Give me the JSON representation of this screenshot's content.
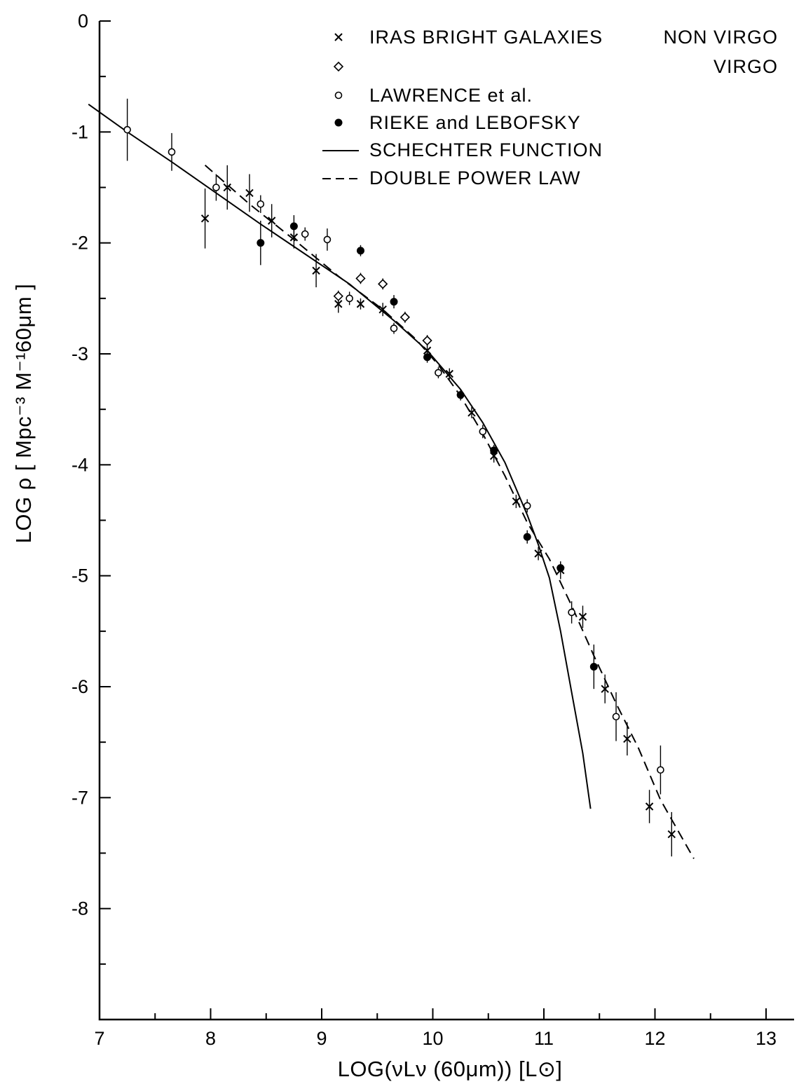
{
  "chart_data": {
    "type": "scatter",
    "xlabel": "LOG(νLν (60μm)) [L⊙]",
    "ylabel": "LOG ρ [ Mpc⁻³ M⁻¹60μm ]",
    "xlim": [
      7,
      13
    ],
    "ylim": [
      -9,
      0
    ],
    "xticks": [
      "7",
      "8",
      "9",
      "10",
      "11",
      "12",
      "13"
    ],
    "yticks": [
      "0",
      "-1",
      "-2",
      "-3",
      "-4",
      "-5",
      "-6",
      "-7",
      "-8"
    ],
    "legend": {
      "placement": "top-right",
      "entries": [
        {
          "marker": "cross",
          "label": "IRAS BRIGHT GALAXIES",
          "note": "NON VIRGO"
        },
        {
          "marker": "diamond",
          "label": "",
          "note": "VIRGO"
        },
        {
          "marker": "open-circle",
          "label": "LAWRENCE et al.",
          "note": ""
        },
        {
          "marker": "filled-circle",
          "label": "RIEKE and LEBOFSKY",
          "note": ""
        },
        {
          "marker": "solid-line",
          "label": "SCHECHTER FUNCTION",
          "note": ""
        },
        {
          "marker": "dashed-line",
          "label": "DOUBLE POWER LAW",
          "note": ""
        }
      ]
    },
    "series": [
      {
        "marker": "cross",
        "points": [
          {
            "x": 7.95,
            "y": -1.78,
            "err": 0.27
          },
          {
            "x": 8.15,
            "y": -1.5,
            "err": 0.2
          },
          {
            "x": 8.35,
            "y": -1.55,
            "err": 0.17
          },
          {
            "x": 8.55,
            "y": -1.8,
            "err": 0.15
          },
          {
            "x": 8.75,
            "y": -1.95,
            "err": 0.1
          },
          {
            "x": 8.95,
            "y": -2.25,
            "err": 0.15
          },
          {
            "x": 9.15,
            "y": -2.55,
            "err": 0.08
          },
          {
            "x": 9.35,
            "y": -2.55,
            "err": 0.05
          },
          {
            "x": 9.55,
            "y": -2.6,
            "err": 0.06
          },
          {
            "x": 9.95,
            "y": -2.97,
            "err": 0.06
          },
          {
            "x": 10.15,
            "y": -3.18,
            "err": 0.05
          },
          {
            "x": 10.35,
            "y": -3.53,
            "err": 0.05
          },
          {
            "x": 10.55,
            "y": -3.92,
            "err": 0.06
          },
          {
            "x": 10.75,
            "y": -4.33,
            "err": 0.06
          },
          {
            "x": 10.95,
            "y": -4.8,
            "err": 0.06
          },
          {
            "x": 11.15,
            "y": -4.95,
            "err": 0.08
          },
          {
            "x": 11.35,
            "y": -5.37,
            "err": 0.1
          },
          {
            "x": 11.55,
            "y": -6.02,
            "err": 0.13
          },
          {
            "x": 11.75,
            "y": -6.47,
            "err": 0.15
          },
          {
            "x": 11.95,
            "y": -7.08,
            "err": 0.15
          },
          {
            "x": 12.15,
            "y": -7.33,
            "err": 0.2
          }
        ]
      },
      {
        "marker": "diamond",
        "points": [
          {
            "x": 9.15,
            "y": -2.48,
            "err": 0.05
          },
          {
            "x": 9.35,
            "y": -2.32,
            "err": 0.05
          },
          {
            "x": 9.55,
            "y": -2.37,
            "err": 0.05
          },
          {
            "x": 9.75,
            "y": -2.67,
            "err": 0.05
          },
          {
            "x": 9.95,
            "y": -2.88,
            "err": 0.05
          }
        ]
      },
      {
        "marker": "open-circle",
        "points": [
          {
            "x": 7.25,
            "y": -0.98,
            "err": 0.28
          },
          {
            "x": 7.65,
            "y": -1.18,
            "err": 0.17
          },
          {
            "x": 8.05,
            "y": -1.5,
            "err": 0.12
          },
          {
            "x": 8.45,
            "y": -1.65,
            "err": 0.08
          },
          {
            "x": 8.85,
            "y": -1.92,
            "err": 0.06
          },
          {
            "x": 9.05,
            "y": -1.97,
            "err": 0.1
          },
          {
            "x": 9.25,
            "y": -2.5,
            "err": 0.06
          },
          {
            "x": 9.65,
            "y": -2.77,
            "err": 0.05
          },
          {
            "x": 10.05,
            "y": -3.17,
            "err": 0.05
          },
          {
            "x": 10.45,
            "y": -3.7,
            "err": 0.06
          },
          {
            "x": 10.85,
            "y": -4.37,
            "err": 0.06
          },
          {
            "x": 11.25,
            "y": -5.33,
            "err": 0.1
          },
          {
            "x": 11.65,
            "y": -6.27,
            "err": 0.22
          },
          {
            "x": 12.05,
            "y": -6.75,
            "err": 0.22
          }
        ]
      },
      {
        "marker": "filled-circle",
        "points": [
          {
            "x": 8.45,
            "y": -2.0,
            "err": 0.2
          },
          {
            "x": 8.75,
            "y": -1.85,
            "err": 0.1
          },
          {
            "x": 9.35,
            "y": -2.07,
            "err": 0.05
          },
          {
            "x": 9.65,
            "y": -2.53,
            "err": 0.06
          },
          {
            "x": 9.95,
            "y": -3.03,
            "err": 0.05
          },
          {
            "x": 10.25,
            "y": -3.37,
            "err": 0.05
          },
          {
            "x": 10.55,
            "y": -3.87,
            "err": 0.05
          },
          {
            "x": 10.85,
            "y": -4.65,
            "err": 0.06
          },
          {
            "x": 11.15,
            "y": -4.93,
            "err": 0.05
          },
          {
            "x": 11.45,
            "y": -5.82,
            "err": 0.2
          }
        ]
      }
    ],
    "curves": [
      {
        "label": "SCHECHTER FUNCTION",
        "style": "solid",
        "points": [
          [
            6.9,
            -0.75
          ],
          [
            7.25,
            -1.0
          ],
          [
            7.65,
            -1.27
          ],
          [
            8.05,
            -1.55
          ],
          [
            8.45,
            -1.83
          ],
          [
            8.85,
            -2.1
          ],
          [
            9.25,
            -2.37
          ],
          [
            9.65,
            -2.7
          ],
          [
            9.95,
            -2.97
          ],
          [
            10.25,
            -3.32
          ],
          [
            10.45,
            -3.62
          ],
          [
            10.65,
            -3.98
          ],
          [
            10.85,
            -4.45
          ],
          [
            10.95,
            -4.72
          ],
          [
            11.05,
            -5.02
          ],
          [
            11.15,
            -5.5
          ],
          [
            11.25,
            -6.05
          ],
          [
            11.35,
            -6.6
          ],
          [
            11.42,
            -7.1
          ]
        ]
      },
      {
        "label": "DOUBLE POWER LAW",
        "style": "dashed",
        "points": [
          [
            7.95,
            -1.3
          ],
          [
            8.35,
            -1.65
          ],
          [
            8.75,
            -1.97
          ],
          [
            9.15,
            -2.3
          ],
          [
            9.55,
            -2.6
          ],
          [
            9.85,
            -2.87
          ],
          [
            10.05,
            -3.1
          ],
          [
            10.25,
            -3.38
          ],
          [
            10.45,
            -3.72
          ],
          [
            10.65,
            -4.1
          ],
          [
            10.85,
            -4.52
          ],
          [
            11.05,
            -4.85
          ],
          [
            11.25,
            -5.27
          ],
          [
            11.45,
            -5.72
          ],
          [
            11.65,
            -6.15
          ],
          [
            11.85,
            -6.55
          ],
          [
            12.05,
            -7.02
          ],
          [
            12.35,
            -7.55
          ]
        ]
      }
    ]
  }
}
